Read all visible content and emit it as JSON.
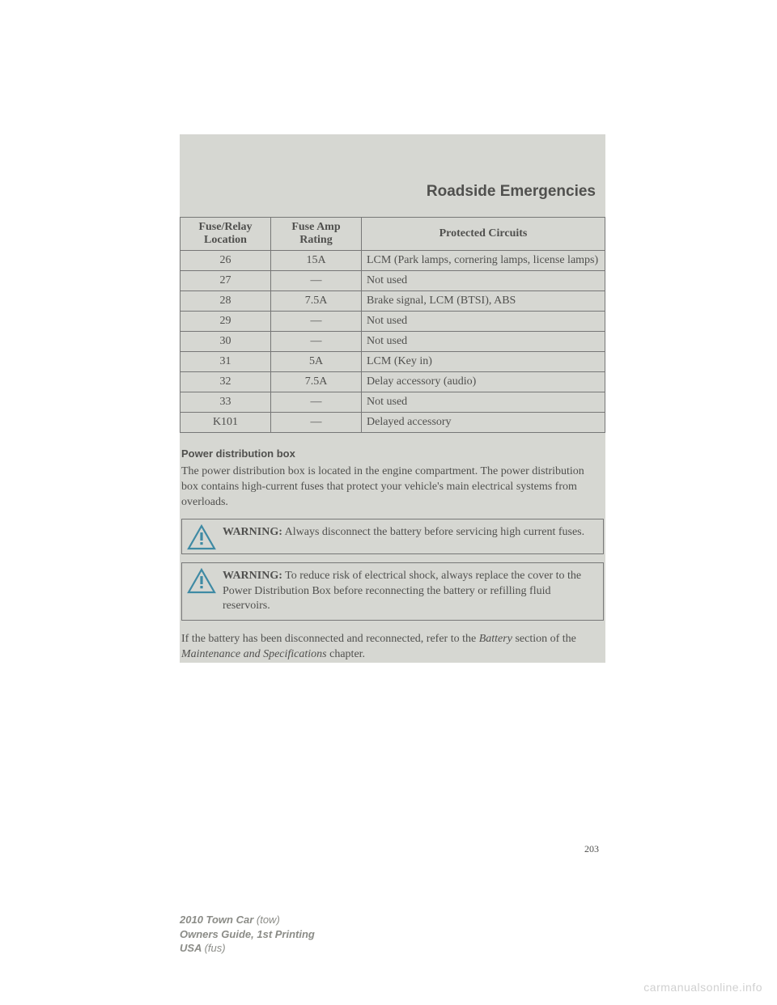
{
  "section_title": "Roadside Emergencies",
  "table": {
    "headers": [
      "Fuse/Relay Location",
      "Fuse Amp Rating",
      "Protected Circuits"
    ],
    "rows": [
      [
        "26",
        "15A",
        "LCM (Park lamps, cornering lamps, license lamps)"
      ],
      [
        "27",
        "—",
        "Not used"
      ],
      [
        "28",
        "7.5A",
        "Brake signal, LCM (BTSI), ABS"
      ],
      [
        "29",
        "—",
        "Not used"
      ],
      [
        "30",
        "—",
        "Not used"
      ],
      [
        "31",
        "5A",
        "LCM (Key in)"
      ],
      [
        "32",
        "7.5A",
        "Delay accessory (audio)"
      ],
      [
        "33",
        "—",
        "Not used"
      ],
      [
        "K101",
        "—",
        "Delayed accessory"
      ]
    ]
  },
  "subhead": "Power distribution box",
  "intro_paragraph": "The power distribution box is located in the engine compartment. The power distribution box contains high-current fuses that protect your vehicle's main electrical systems from overloads.",
  "warnings": [
    {
      "label": "WARNING:",
      "text": " Always disconnect the battery before servicing high current fuses."
    },
    {
      "label": "WARNING:",
      "text": " To reduce risk of electrical shock, always replace the cover to the Power Distribution Box before reconnecting the battery or refilling fluid reservoirs."
    }
  ],
  "closing_pre": "If the battery has been disconnected and reconnected, refer to the ",
  "closing_em1": "Battery",
  "closing_mid": " section of the ",
  "closing_em2": "Maintenance and Specifications",
  "closing_post": " chapter.",
  "page_number": "203",
  "footer": {
    "line1_model": "2010 Town Car ",
    "line1_rest": "(tow)",
    "line2_bold": "Owners Guide, 1st Printing",
    "line3_bold": "USA ",
    "line3_rest": "(fus)"
  },
  "watermark": "carmanualsonline.info",
  "colors": {
    "page_bg": "#ffffff",
    "gray_bg": "#d6d7d2",
    "text": "#50504e",
    "footer_text": "#8b8c87",
    "border": "#777777",
    "watermark": "#d0d0d0",
    "tri_stroke": "#3f8aa4",
    "tri_fill": "#d6d7d2"
  }
}
